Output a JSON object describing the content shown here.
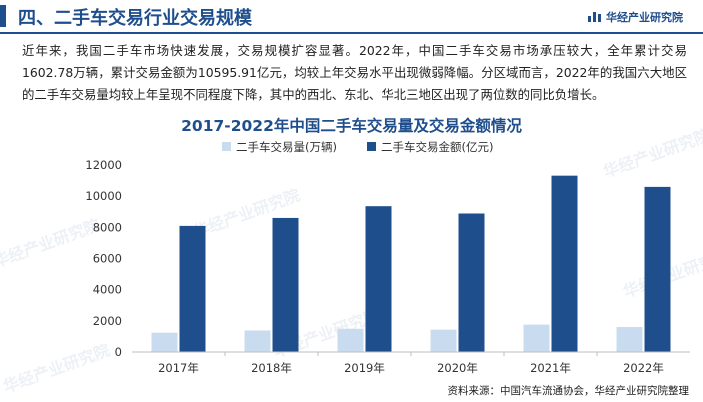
{
  "header": {
    "title": "四、二手车交易行业交易规模",
    "brand": "华经产业研究院"
  },
  "intro": "近年来，我国二手车市场快速发展，交易规模扩容显著。2022年，中国二手车交易市场承压较大，全年累计交易1602.78万辆，累计交易金额为10595.91亿元，均较上年交易水平出现微弱降幅。分区域而言，2022年的我国六大地区的二手车交易量均较上年呈现不同程度下降，其中的西北、东北、华北三地区出现了两位数的同比负增长。",
  "watermark": "华经产业研究院",
  "source": "资料来源：中国汽车流通协会，华经产业研究院整理",
  "colors": {
    "accent": "#1f4e8c",
    "volume": "#c9dcef",
    "amount": "#1f4e8c"
  },
  "chart_data": {
    "type": "bar",
    "title": "2017-2022年中国二手车交易量及交易金额情况",
    "categories": [
      "2017年",
      "2018年",
      "2019年",
      "2020年",
      "2021年",
      "2022年"
    ],
    "series": [
      {
        "name": "二手车交易量(万辆)",
        "values": [
          1240,
          1382,
          1492,
          1434,
          1758,
          1603
        ]
      },
      {
        "name": "二手车交易金额(亿元)",
        "values": [
          8092,
          8603,
          9357,
          8888,
          11316,
          10596
        ]
      }
    ],
    "yticks": [
      0,
      2000,
      4000,
      6000,
      8000,
      10000,
      12000
    ],
    "ylim": [
      0,
      12000
    ],
    "legend": "top-center",
    "grid": false
  }
}
